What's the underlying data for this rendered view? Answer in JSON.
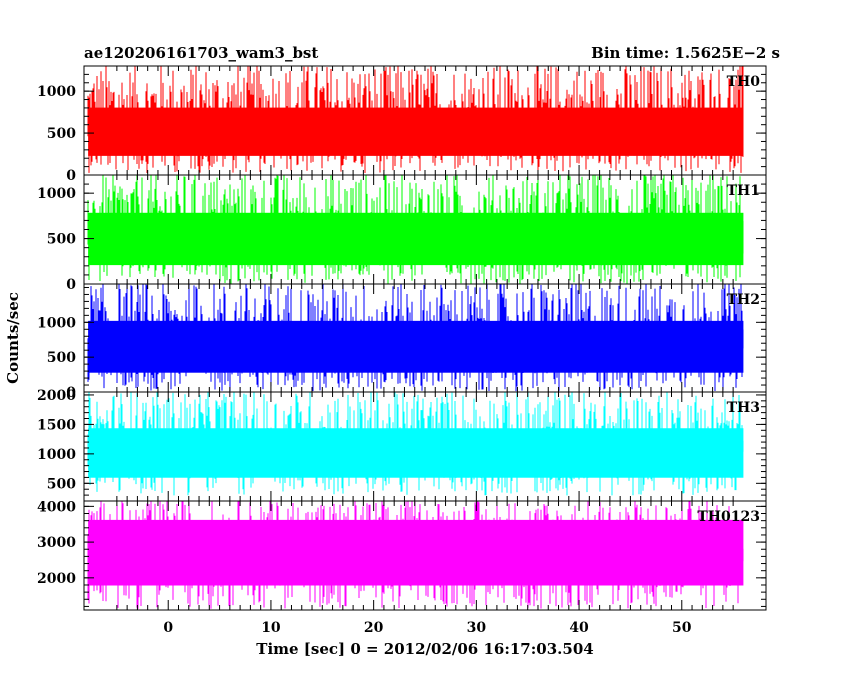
{
  "title": "ae120206161703_wam3_bst",
  "bin_time": "Bin time: 1.5625E−2 s",
  "ylabel": "Counts/sec",
  "xlabel": "Time [sec] 0 = 2012/02/06 16:17:03.504",
  "colors": {
    "TH0": "#ff0000",
    "TH1": "#00ff00",
    "TH2": "#0000ff",
    "TH3": "#00ffff",
    "TH0123": "#ff00ff",
    "frame": "#000000",
    "background": "#ffffff"
  },
  "chart_data": {
    "type": "line",
    "title": "ae120206161703_wam3_bst",
    "xlabel": "Time [sec] 0 = 2012/02/06 16:17:03.504",
    "ylabel": "Counts/sec",
    "xlim": [
      -8.2,
      58.2
    ],
    "x_range": [
      -7.8,
      56.0
    ],
    "bin_time": 0.015625,
    "xticks": [
      0,
      10,
      20,
      30,
      40,
      50
    ],
    "grid": false,
    "panels": [
      {
        "name": "TH0",
        "ylim": [
          0,
          1300
        ],
        "yticks": [
          0,
          500,
          1000
        ],
        "mean": 540,
        "low": 60,
        "high": 1300
      },
      {
        "name": "TH1",
        "ylim": [
          0,
          1200
        ],
        "yticks": [
          0,
          500,
          1000
        ],
        "mean": 520,
        "low": 40,
        "high": 1200
      },
      {
        "name": "TH2",
        "ylim": [
          0,
          1550
        ],
        "yticks": [
          0,
          500,
          1000
        ],
        "mean": 680,
        "low": 60,
        "high": 1550
      },
      {
        "name": "TH3",
        "ylim": [
          200,
          2050
        ],
        "yticks": [
          500,
          1000,
          1500,
          2000
        ],
        "mean": 1050,
        "low": 350,
        "high": 2050
      },
      {
        "name": "TH0123",
        "ylim": [
          1100,
          4150
        ],
        "yticks": [
          2000,
          3000,
          4000
        ],
        "mean": 2780,
        "low": 1250,
        "high": 4150
      }
    ]
  }
}
